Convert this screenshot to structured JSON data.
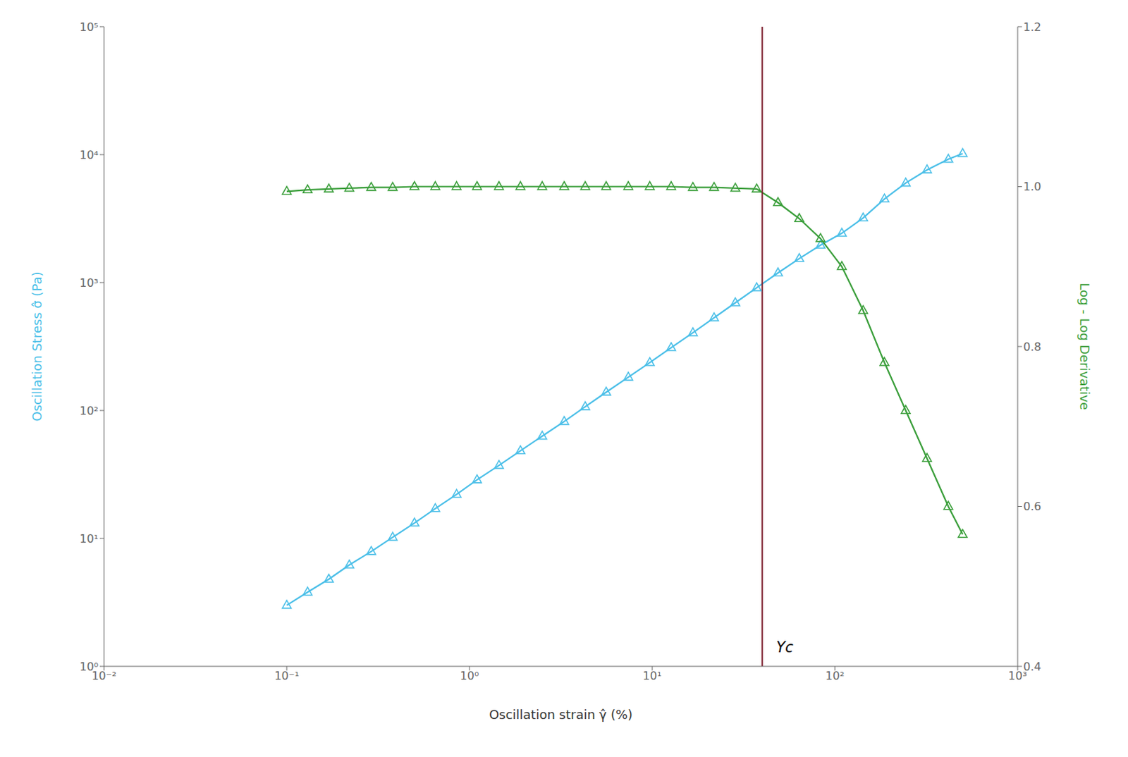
{
  "chart_data": {
    "type": "line",
    "xlabel": "Oscillation strain γ̂ (%)",
    "ylabel": "Oscillation Stress σ̂ (Pa)",
    "y2label": "Log - Log Derivative",
    "log": true,
    "grid": false,
    "x": [
      0.1,
      0.13,
      0.17,
      0.22,
      0.29,
      0.38,
      0.5,
      0.65,
      0.85,
      1.1,
      1.45,
      1.9,
      2.5,
      3.3,
      4.3,
      5.6,
      7.4,
      9.7,
      12.7,
      16.7,
      21.8,
      28.5,
      37.3,
      48.8,
      63.8,
      83.4,
      109.1,
      142.7,
      186.6,
      244.0,
      319.1,
      417.3,
      500.0
    ],
    "series": [
      {
        "color": "#4BBFE8",
        "marker": "triangle",
        "values": [
          3.0,
          3.8,
          4.8,
          6.2,
          7.9,
          10.2,
          13.2,
          17.1,
          22.1,
          28.7,
          37.2,
          48.4,
          63.0,
          82.0,
          107.0,
          139.0,
          182.0,
          237.0,
          310.0,
          405.0,
          530.0,
          695.0,
          910.0,
          1190.0,
          1540.0,
          1960.0,
          2430.0,
          3200.0,
          4500.0,
          6000.0,
          7600.0,
          9200.0,
          10200.0
        ]
      },
      {
        "color": "#3A9E3A",
        "marker": "triangle",
        "axis": "y2",
        "values": [
          0.994,
          0.996,
          0.997,
          0.998,
          0.999,
          0.999,
          1.0,
          1.0,
          1.0,
          1.0,
          1.0,
          1.0,
          1.0,
          1.0,
          1.0,
          1.0,
          1.0,
          1.0,
          1.0,
          0.999,
          0.999,
          0.998,
          0.997,
          0.98,
          0.96,
          0.935,
          0.9,
          0.845,
          0.78,
          0.72,
          0.66,
          0.6,
          0.565
        ]
      }
    ],
    "xlim": [
      0.01,
      1000
    ],
    "xticks": [
      {
        "value": 0.01,
        "label": "10⁻²"
      },
      {
        "value": 0.1,
        "label": "10⁻¹"
      },
      {
        "value": 1,
        "label": "10⁰"
      },
      {
        "value": 10,
        "label": "10¹"
      },
      {
        "value": 100,
        "label": "10²"
      },
      {
        "value": 1000,
        "label": "10³"
      }
    ],
    "ylim": [
      1,
      100000
    ],
    "yticks": [
      {
        "value": 1,
        "label": "10⁰"
      },
      {
        "value": 10,
        "label": "10¹"
      },
      {
        "value": 100,
        "label": "10²"
      },
      {
        "value": 1000,
        "label": "10³"
      },
      {
        "value": 10000,
        "label": "10⁴"
      },
      {
        "value": 100000,
        "label": "10⁵"
      }
    ],
    "y2lim": [
      0.4,
      1.2
    ],
    "y2ticks": [
      0.4,
      0.6,
      0.8,
      {
        "value": 1.0,
        "label": "1.0"
      },
      1.2
    ],
    "annotations": [
      {
        "text": "Υc",
        "x": 40,
        "color": "#7B1C2B"
      }
    ]
  }
}
